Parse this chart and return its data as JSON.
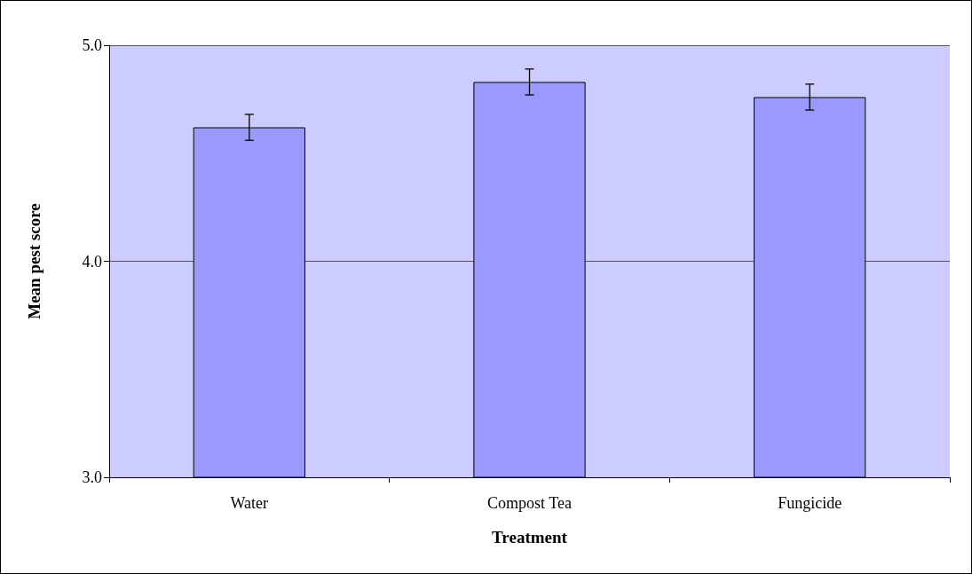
{
  "chart_data": {
    "type": "bar",
    "xlabel": "Treatment",
    "ylabel": "Mean pest score",
    "categories": [
      "Water",
      "Compost Tea",
      "Fungicide"
    ],
    "values": [
      4.62,
      4.83,
      4.76
    ],
    "errors": [
      0.06,
      0.06,
      0.06
    ],
    "color": "#9999ff",
    "ylim": [
      3,
      5
    ],
    "yticks": [
      {
        "value": 3,
        "label": "3.0"
      },
      {
        "value": 4,
        "label": "4.0"
      },
      {
        "value": 5,
        "label": "5.0"
      }
    ],
    "grid": "y"
  }
}
